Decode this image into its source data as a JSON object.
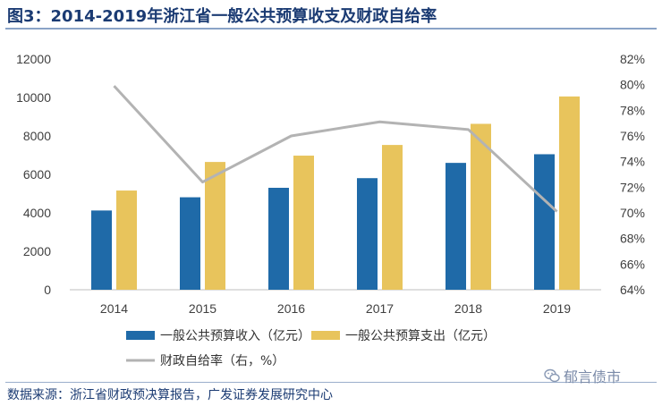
{
  "header": {
    "title": "图3：2014-2019年浙江省一般公共预算收支及财政自给率"
  },
  "footer": {
    "source": "数据来源：浙江省财政预决算报告，广发证券发展研究中心",
    "watermark": "郁言债市"
  },
  "colors": {
    "revenue": "#1f6aa8",
    "expenditure": "#e8c45c",
    "ratio": "#b3b3b3",
    "title": "#1b3b73"
  },
  "chart_data": {
    "type": "bar",
    "title": "2014-2019年浙江省一般公共预算收支及财政自给率",
    "categories": [
      "2014",
      "2015",
      "2016",
      "2017",
      "2018",
      "2019"
    ],
    "series": [
      {
        "name": "一般公共预算收入（亿元）",
        "type": "bar",
        "axis": "left",
        "color": "#1f6aa8",
        "values": [
          4122,
          4810,
          5302,
          5804,
          6598,
          7048
        ]
      },
      {
        "name": "一般公共预算支出（亿元）",
        "type": "bar",
        "axis": "left",
        "color": "#e8c45c",
        "values": [
          5160,
          6646,
          6975,
          7530,
          8629,
          10053
        ]
      },
      {
        "name": "财政自给率（右，%）",
        "type": "line",
        "axis": "right",
        "color": "#b3b3b3",
        "values": [
          79.9,
          72.4,
          76.0,
          77.1,
          76.5,
          70.1
        ]
      }
    ],
    "y_left": {
      "ylim": [
        0,
        12000
      ],
      "ticks": [
        "0",
        "2000",
        "4000",
        "6000",
        "8000",
        "10000",
        "12000"
      ],
      "tick_values": [
        0,
        2000,
        4000,
        6000,
        8000,
        10000,
        12000
      ]
    },
    "y_right": {
      "ylim": [
        64,
        82
      ],
      "ticks": [
        "64%",
        "66%",
        "68%",
        "70%",
        "72%",
        "74%",
        "76%",
        "78%",
        "80%",
        "82%"
      ],
      "tick_values": [
        64,
        66,
        68,
        70,
        72,
        74,
        76,
        78,
        80,
        82
      ]
    },
    "xlabel": "",
    "ylabel": "",
    "grid": false,
    "legend_position": "bottom"
  }
}
